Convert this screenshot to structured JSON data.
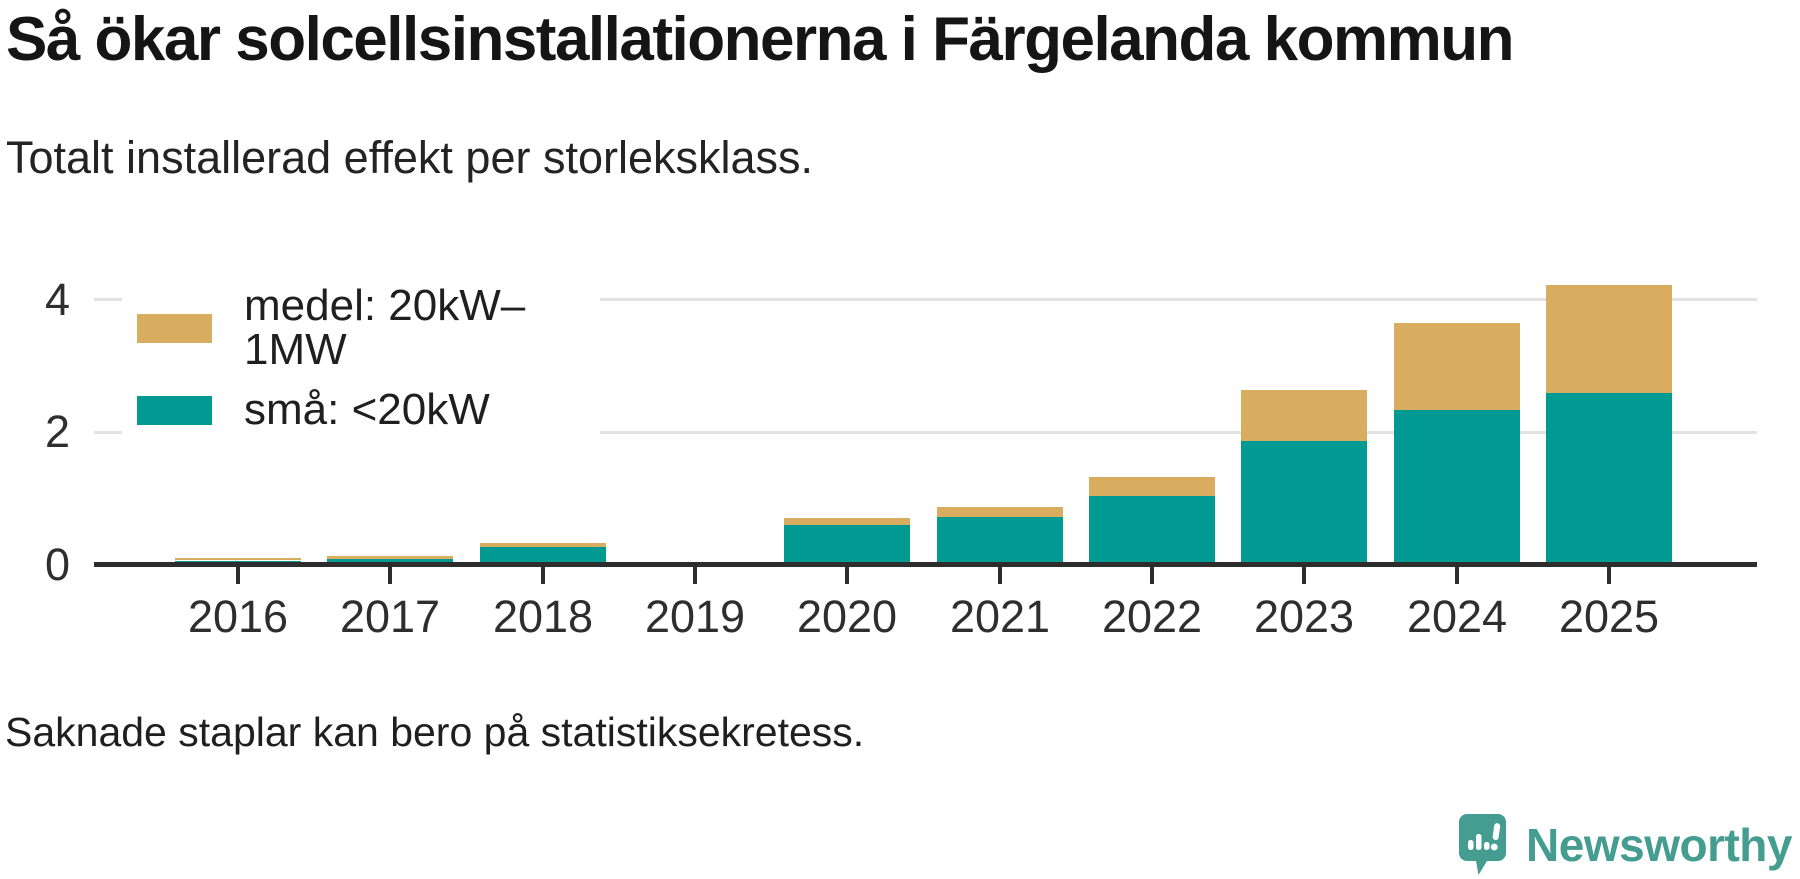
{
  "header": {
    "title": "Så ökar solcellsinstallationerna i Färgelanda kommun",
    "subtitle": "Totalt installerad effekt per storleksklass."
  },
  "legend": {
    "items": [
      {
        "label": "medel: 20kW–1MW",
        "color": "#d9ad5f"
      },
      {
        "label": "små: <20kW",
        "color": "#009a93"
      }
    ]
  },
  "footer": {
    "note": "Saknade staplar kan bero på statistiksekretess."
  },
  "branding": {
    "name": "Newsworthy",
    "color": "#459c90",
    "icon": "newsworthy-speech-bubble-bar-chart-icon"
  },
  "chart_data": {
    "type": "bar",
    "stacked": true,
    "title": "Så ökar solcellsinstallationerna i Färgelanda kommun",
    "subtitle": "Totalt installerad effekt per storleksklass.",
    "categories": [
      "2016",
      "2017",
      "2018",
      "2019",
      "2020",
      "2021",
      "2022",
      "2023",
      "2024",
      "2025"
    ],
    "series": [
      {
        "name": "små: <20kW",
        "color": "#009a93",
        "stack_position": "bottom",
        "values": [
          0.06,
          0.08,
          0.26,
          null,
          0.59,
          0.72,
          1.03,
          1.86,
          2.33,
          2.59
        ]
      },
      {
        "name": "medel: 20kW–1MW",
        "color": "#d9ad5f",
        "stack_position": "top",
        "values": [
          0.04,
          0.05,
          0.07,
          null,
          0.11,
          0.15,
          0.3,
          0.77,
          1.32,
          1.63
        ]
      }
    ],
    "totals": [
      0.1,
      0.13,
      0.33,
      null,
      0.7,
      0.87,
      1.33,
      2.63,
      3.65,
      4.22
    ],
    "missing_categories": [
      "2019"
    ],
    "xlabel": "",
    "ylabel": "",
    "yticks": [
      0,
      2,
      4
    ],
    "ytick_labels": [
      "0",
      "2",
      "4"
    ],
    "ylim": [
      0,
      4.4
    ],
    "grid": "horizontal-y",
    "legend_position": "top-left"
  }
}
